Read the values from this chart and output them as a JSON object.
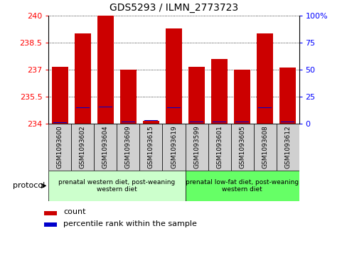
{
  "title": "GDS5293 / ILMN_2773723",
  "samples": [
    "GSM1093600",
    "GSM1093602",
    "GSM1093604",
    "GSM1093609",
    "GSM1093615",
    "GSM1093619",
    "GSM1093599",
    "GSM1093601",
    "GSM1093605",
    "GSM1093608",
    "GSM1093612"
  ],
  "red_values": [
    237.15,
    239.0,
    240.0,
    237.0,
    234.15,
    239.3,
    237.15,
    237.6,
    237.0,
    239.0,
    237.1
  ],
  "blue_values": [
    234.08,
    234.9,
    234.95,
    234.12,
    234.2,
    234.9,
    234.1,
    234.12,
    234.12,
    234.9,
    234.12
  ],
  "ymin": 234.0,
  "ymax": 240.0,
  "yticks": [
    234,
    235.5,
    237,
    238.5,
    240
  ],
  "right_yticks": [
    0,
    25,
    50,
    75,
    100
  ],
  "group1_label": "prenatal western diet, post-weaning\nwestern diet",
  "group2_label": "prenatal low-fat diet, post-weaning\nwestern diet",
  "group1_indices": [
    0,
    1,
    2,
    3,
    4,
    5
  ],
  "group2_indices": [
    6,
    7,
    8,
    9,
    10
  ],
  "bar_color": "#cc0000",
  "dot_color": "#0000cc",
  "group1_bg": "#ccffcc",
  "group2_bg": "#66ff66",
  "tick_bg": "#d0d0d0",
  "legend_count": "count",
  "legend_percentile": "percentile rank within the sample",
  "bar_width": 0.7
}
